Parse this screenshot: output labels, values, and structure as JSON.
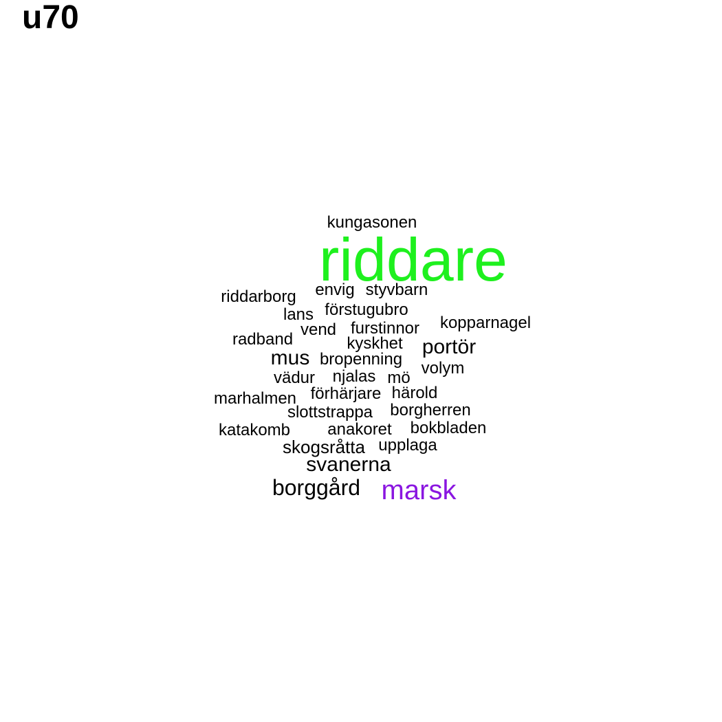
{
  "title": "u70",
  "colors": {
    "default": "#000000",
    "highlight_green": "#1ef01e",
    "highlight_purple": "#8a16e0"
  },
  "words": [
    {
      "text": "kungasonen",
      "color": "#000000"
    },
    {
      "text": "riddare",
      "color": "#1ef01e"
    },
    {
      "text": "envig",
      "color": "#000000"
    },
    {
      "text": "styvbarn",
      "color": "#000000"
    },
    {
      "text": "riddarborg",
      "color": "#000000"
    },
    {
      "text": "förstugubro",
      "color": "#000000"
    },
    {
      "text": "lans",
      "color": "#000000"
    },
    {
      "text": "vend",
      "color": "#000000"
    },
    {
      "text": "furstinnor",
      "color": "#000000"
    },
    {
      "text": "kopparnagel",
      "color": "#000000"
    },
    {
      "text": "radband",
      "color": "#000000"
    },
    {
      "text": "kyskhet",
      "color": "#000000"
    },
    {
      "text": "portör",
      "color": "#000000"
    },
    {
      "text": "mus",
      "color": "#000000"
    },
    {
      "text": "bropenning",
      "color": "#000000"
    },
    {
      "text": "volym",
      "color": "#000000"
    },
    {
      "text": "vädur",
      "color": "#000000"
    },
    {
      "text": "njalas",
      "color": "#000000"
    },
    {
      "text": "mö",
      "color": "#000000"
    },
    {
      "text": "marhalmen",
      "color": "#000000"
    },
    {
      "text": "förhärjare",
      "color": "#000000"
    },
    {
      "text": "härold",
      "color": "#000000"
    },
    {
      "text": "slottstrappa",
      "color": "#000000"
    },
    {
      "text": "borgherren",
      "color": "#000000"
    },
    {
      "text": "katakomb",
      "color": "#000000"
    },
    {
      "text": "anakoret",
      "color": "#000000"
    },
    {
      "text": "bokbladen",
      "color": "#000000"
    },
    {
      "text": "skogsråtta",
      "color": "#000000"
    },
    {
      "text": "upplaga",
      "color": "#000000"
    },
    {
      "text": "svanerna",
      "color": "#000000"
    },
    {
      "text": "borggård",
      "color": "#000000"
    },
    {
      "text": "marsk",
      "color": "#8a16e0"
    }
  ]
}
